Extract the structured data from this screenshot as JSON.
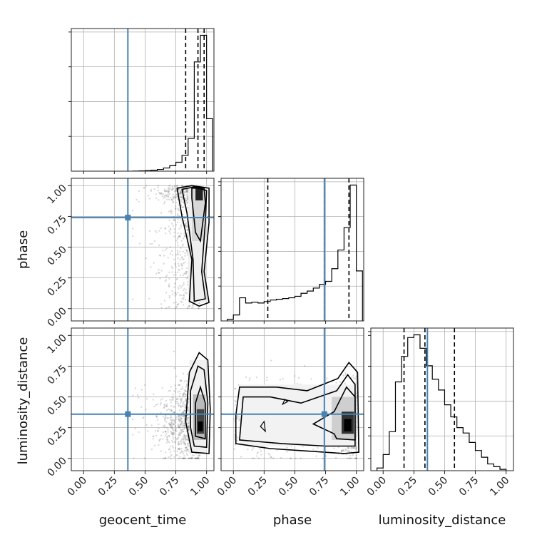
{
  "chart_data": {
    "type": "corner",
    "parameters": [
      "geocent_time",
      "phase",
      "luminosity_distance"
    ],
    "range": [
      0,
      1
    ],
    "tick_labels": [
      "0.00",
      "0.25",
      "0.50",
      "0.75",
      "1.00"
    ],
    "grid": true,
    "truths": {
      "geocent_time": 0.36,
      "phase": 0.74,
      "luminosity_distance": 0.36
    },
    "truth_color": "#4682b4",
    "hist_color": "#000000",
    "quantiles": {
      "geocent_time": [
        0.83,
        0.93,
        0.98
      ],
      "phase": [
        0.28,
        0.74,
        0.94
      ],
      "luminosity_distance": [
        0.17,
        0.34,
        0.58
      ]
    },
    "histograms": {
      "geocent_time": {
        "bins": [
          0.4,
          0.45,
          0.5,
          0.55,
          0.6,
          0.65,
          0.7,
          0.75,
          0.8,
          0.85,
          0.9,
          0.95,
          1.0,
          1.05
        ],
        "counts": [
          1,
          2,
          4,
          7,
          12,
          22,
          38,
          62,
          110,
          228,
          760,
          945,
          365
        ]
      },
      "phase": {
        "bins": [
          -0.05,
          0.0,
          0.05,
          0.1,
          0.15,
          0.2,
          0.25,
          0.3,
          0.35,
          0.4,
          0.45,
          0.5,
          0.55,
          0.6,
          0.65,
          0.7,
          0.75,
          0.8,
          0.85,
          0.9,
          0.95,
          1.0,
          1.05
        ],
        "counts": [
          2,
          8,
          31,
          24,
          25,
          24,
          26,
          28,
          29,
          30,
          31,
          33,
          37,
          40,
          44,
          49,
          53,
          70,
          95,
          125,
          182,
          67
        ]
      },
      "luminosity_distance": {
        "bins": [
          -0.05,
          0.0,
          0.05,
          0.1,
          0.15,
          0.2,
          0.25,
          0.3,
          0.35,
          0.4,
          0.45,
          0.5,
          0.55,
          0.6,
          0.65,
          0.7,
          0.75,
          0.8,
          0.85,
          0.9,
          0.95,
          1.0
        ],
        "counts": [
          2,
          12,
          29,
          66,
          85,
          99,
          101,
          91,
          78,
          68,
          60,
          49,
          40,
          32,
          28,
          21,
          15,
          10,
          5,
          3,
          1
        ]
      }
    },
    "pair_panels": [
      {
        "x": "geocent_time",
        "y": "phase",
        "density_peak": [
          0.94,
          0.94
        ]
      },
      {
        "x": "geocent_time",
        "y": "luminosity_distance",
        "density_peak": [
          0.95,
          0.25
        ]
      },
      {
        "x": "phase",
        "y": "luminosity_distance",
        "density_peak": [
          0.93,
          0.28
        ]
      }
    ]
  }
}
